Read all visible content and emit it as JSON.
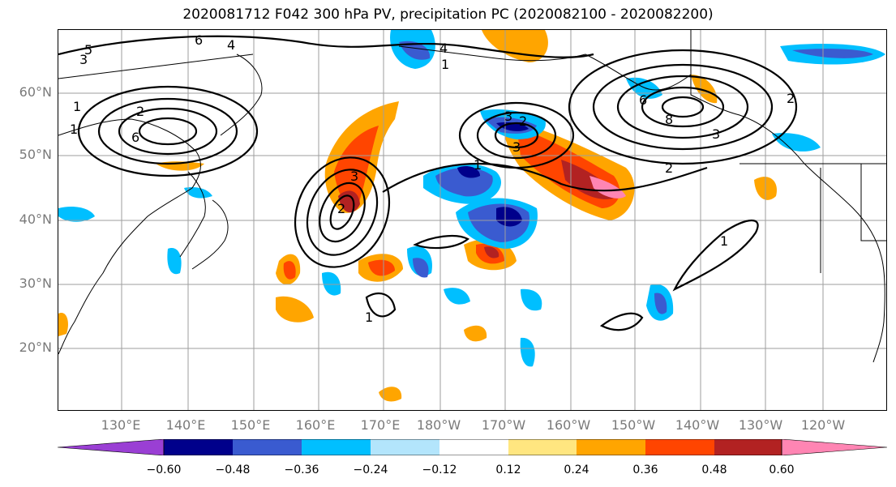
{
  "title": "2020081712 F042 300 hPa PV, precipitation PC (2020082100 - 2020082200)",
  "lat_labels": [
    "60°N",
    "50°N",
    "40°N",
    "30°N",
    "20°N"
  ],
  "lon_labels": [
    "130°E",
    "140°E",
    "150°E",
    "160°E",
    "170°E",
    "180°W",
    "170°W",
    "160°W",
    "150°W",
    "140°W",
    "130°W",
    "120°W"
  ],
  "colorbar": {
    "ticks": [
      "−0.60",
      "−0.48",
      "−0.36",
      "−0.24",
      "−0.12",
      "0.12",
      "0.24",
      "0.36",
      "0.48",
      "0.60"
    ],
    "colors": [
      "#9a3fd4",
      "#00008b",
      "#3a5bd0",
      "#00bfff",
      "#b3e5fc",
      "#ffffff",
      "#ffe680",
      "#ffa500",
      "#ff4500",
      "#b22222",
      "#ff85b3"
    ]
  },
  "contour_labels": [
    "5",
    "6",
    "4",
    "3",
    "2",
    "1",
    "6",
    "3",
    "2",
    "1",
    "3",
    "2",
    "3",
    "4",
    "1",
    "1",
    "6",
    "8",
    "3",
    "2",
    "2",
    "1",
    "1"
  ]
}
